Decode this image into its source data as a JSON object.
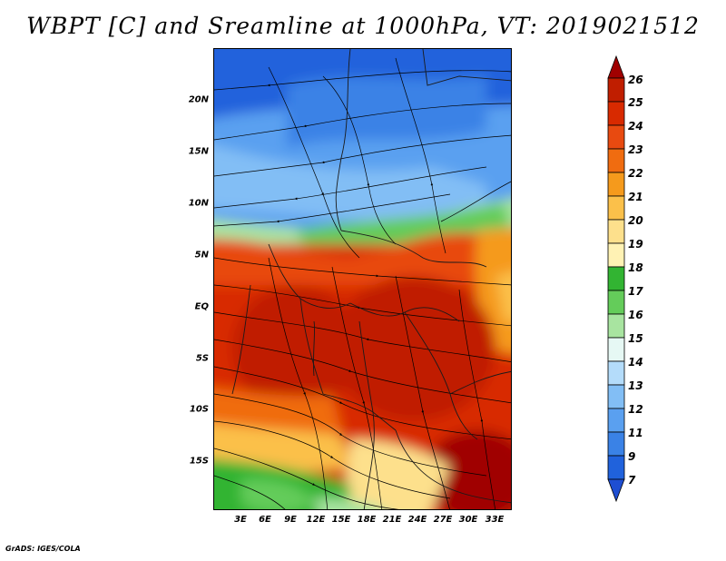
{
  "title": "WBPT [C] and Sreamline at 1000hPa, VT: 2019021512",
  "credit": "GrADS: IGES/COLA",
  "lat_labels": [
    "20N",
    "15N",
    "10N",
    "5N",
    "EQ",
    "5S",
    "10S",
    "15S"
  ],
  "lon_labels": [
    "3E",
    "6E",
    "9E",
    "12E",
    "15E",
    "18E",
    "21E",
    "24E",
    "27E",
    "30E",
    "33E"
  ],
  "colorbar": {
    "levels": [
      "26",
      "25",
      "24",
      "23",
      "22",
      "21",
      "20",
      "19",
      "18",
      "17",
      "16",
      "15",
      "14",
      "13",
      "12",
      "11",
      "9",
      "7"
    ],
    "colors": [
      "#a00000",
      "#c01e00",
      "#d82a00",
      "#e84a10",
      "#f06c10",
      "#f59a1c",
      "#fbc04a",
      "#fde08c",
      "#fff2b4",
      "#32b432",
      "#64cc5a",
      "#a8e4a0",
      "#e6f8f4",
      "#b4dcfa",
      "#82bef5",
      "#5aa0f0",
      "#3a82e6",
      "#2062dc",
      "#1e4ed2"
    ]
  }
}
